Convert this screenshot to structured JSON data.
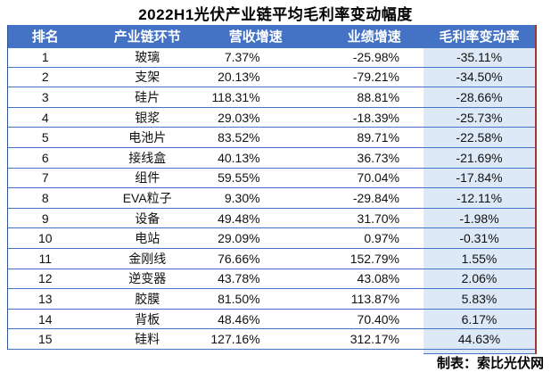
{
  "colors": {
    "header_bg": "#4472C4",
    "grid_line": "#4472C4",
    "outer_border": "#2F5597",
    "highlight_bg": "#DDE9F7",
    "accent_red_edge": "#9C3A38",
    "header_text": "#FFFFFF",
    "body_text": "#111111"
  },
  "chart_data": {
    "type": "table",
    "title": "2022H1光伏产业链平均毛利率变动幅度",
    "columns": [
      "排名",
      "产业链环节",
      "营收增速",
      "业绩增速",
      "毛利率变动率"
    ],
    "rows": [
      [
        "1",
        "玻璃",
        "7.37%",
        "-25.98%",
        "-35.11%"
      ],
      [
        "2",
        "支架",
        "20.13%",
        "-79.21%",
        "-34.50%"
      ],
      [
        "3",
        "硅片",
        "118.31%",
        "88.81%",
        "-28.66%"
      ],
      [
        "4",
        "银浆",
        "29.03%",
        "-18.39%",
        "-25.73%"
      ],
      [
        "5",
        "电池片",
        "83.52%",
        "89.71%",
        "-22.58%"
      ],
      [
        "6",
        "接线盒",
        "40.13%",
        "36.73%",
        "-21.69%"
      ],
      [
        "7",
        "组件",
        "59.55%",
        "70.04%",
        "-17.84%"
      ],
      [
        "8",
        "EVA粒子",
        "9.30%",
        "-29.84%",
        "-12.11%"
      ],
      [
        "9",
        "设备",
        "49.48%",
        "31.70%",
        "-1.98%"
      ],
      [
        "10",
        "电站",
        "29.09%",
        "0.97%",
        "-0.31%"
      ],
      [
        "11",
        "金刚线",
        "76.66%",
        "152.79%",
        "1.55%"
      ],
      [
        "12",
        "逆变器",
        "43.78%",
        "43.08%",
        "2.06%"
      ],
      [
        "13",
        "胶膜",
        "81.50%",
        "113.87%",
        "5.83%"
      ],
      [
        "14",
        "背板",
        "48.46%",
        "70.40%",
        "6.17%"
      ],
      [
        "15",
        "硅料",
        "127.16%",
        "312.17%",
        "44.63%"
      ]
    ],
    "source_credit": "制表：索比光伏网"
  }
}
